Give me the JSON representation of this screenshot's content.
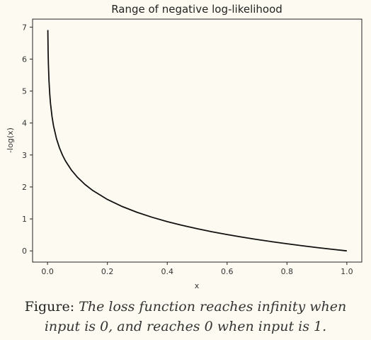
{
  "chart_data": {
    "type": "line",
    "title": "Range of negative log-likelihood",
    "xlabel": "x",
    "ylabel": "-log(x)",
    "xlim": [
      -0.05,
      1.05
    ],
    "ylim": [
      -0.35,
      7.25
    ],
    "x_ticks": [
      "0.0",
      "0.2",
      "0.4",
      "0.6",
      "0.8",
      "1.0"
    ],
    "y_ticks": [
      "0",
      "1",
      "2",
      "3",
      "4",
      "5",
      "6",
      "7"
    ],
    "grid": false,
    "series": [
      {
        "color": "#111111",
        "x": [
          0.001,
          0.002,
          0.003,
          0.005,
          0.0075,
          0.01,
          0.015,
          0.02,
          0.03,
          0.04,
          0.05,
          0.06,
          0.08,
          0.1,
          0.125,
          0.15,
          0.2,
          0.25,
          0.3,
          0.35,
          0.4,
          0.45,
          0.5,
          0.55,
          0.6,
          0.65,
          0.7,
          0.75,
          0.8,
          0.85,
          0.9,
          0.95,
          1.0
        ],
        "y": [
          6.908,
          6.215,
          5.809,
          5.298,
          4.893,
          4.605,
          4.2,
          3.912,
          3.507,
          3.219,
          2.996,
          2.813,
          2.526,
          2.303,
          2.079,
          1.897,
          1.609,
          1.386,
          1.204,
          1.05,
          0.916,
          0.799,
          0.693,
          0.598,
          0.511,
          0.431,
          0.357,
          0.288,
          0.223,
          0.163,
          0.105,
          0.051,
          0.0
        ]
      }
    ]
  },
  "caption": {
    "lead": "Figure:",
    "text": "The loss function reaches infinity when input is 0, and reaches 0 when input is 1."
  }
}
